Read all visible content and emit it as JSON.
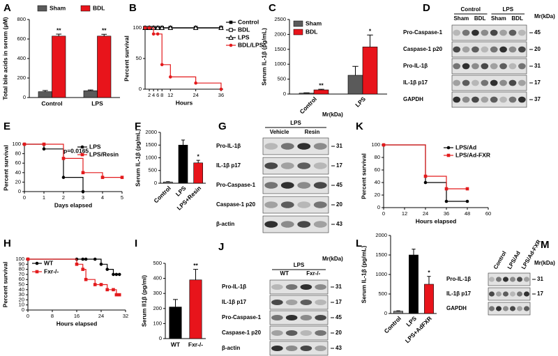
{
  "chart_data": [
    {
      "type": "bar",
      "panel": "A",
      "ylabel": "Total bile acids in serum (μM)",
      "categories": [
        "Control",
        "LPS"
      ],
      "series": [
        {
          "name": "Sham",
          "color": "#5a5a5a",
          "values": [
            60,
            70
          ],
          "errors": [
            12,
            8
          ],
          "significance": [
            null,
            null
          ]
        },
        {
          "name": "BDL",
          "color": "#e8141b",
          "values": [
            630,
            630
          ],
          "errors": [
            20,
            18
          ],
          "significance": [
            "**",
            "**"
          ]
        }
      ],
      "ylim": [
        0,
        800
      ],
      "yticks": [
        0,
        200,
        400,
        600,
        800
      ],
      "legend": "top"
    },
    {
      "type": "survival",
      "panel": "B",
      "ylabel": "Percent survival",
      "xlabel": "Hours",
      "x": [
        0,
        2,
        4,
        6,
        8,
        12,
        24,
        36
      ],
      "series": [
        {
          "name": "Control",
          "color": "#000000",
          "marker": "square",
          "values": [
            100,
            100,
            100,
            100,
            100,
            100,
            100,
            100
          ]
        },
        {
          "name": "BDL",
          "color": "#000000",
          "marker": "open-square",
          "values": [
            100,
            100,
            100,
            100,
            100,
            100,
            100,
            100
          ]
        },
        {
          "name": "LPS",
          "color": "#000000",
          "marker": "open-triangle",
          "values": [
            100,
            100,
            100,
            100,
            100,
            100,
            100,
            100
          ]
        },
        {
          "name": "BDL/LPS",
          "color": "#e31a1c",
          "marker": "circle",
          "values": [
            100,
            100,
            90,
            90,
            40,
            20,
            10,
            0
          ]
        }
      ],
      "xlim": [
        0,
        37
      ],
      "xticks": [
        2,
        4,
        6,
        8,
        12,
        24,
        36
      ],
      "ylim": [
        0,
        100
      ],
      "yticks": [
        0,
        50,
        100
      ],
      "legend": "right"
    },
    {
      "type": "bar",
      "panel": "C",
      "ylabel": "Serum IL-1β (pg/mL)",
      "categories": [
        "Control",
        "LPS"
      ],
      "series": [
        {
          "name": "Sham",
          "color": "#5a5a5a",
          "values": [
            30,
            630
          ],
          "errors": [
            10,
            300
          ],
          "significance": [
            null,
            null
          ]
        },
        {
          "name": "BDL",
          "color": "#e8141b",
          "values": [
            140,
            1580
          ],
          "errors": [
            20,
            400
          ],
          "significance": [
            "**",
            "*"
          ]
        }
      ],
      "ylim": [
        0,
        2500
      ],
      "yticks": [
        0,
        500,
        1000,
        1500,
        2000,
        2500
      ],
      "legend": "upper left"
    },
    {
      "type": "survival",
      "panel": "E",
      "ylabel": "Percent survival",
      "xlabel": "Days elapsed",
      "annotation": "p=0.0165",
      "x": [
        0,
        1,
        2,
        3,
        4,
        5
      ],
      "series": [
        {
          "name": "LPS",
          "color": "#000000",
          "marker": "circle",
          "values": [
            100,
            90,
            30,
            0,
            null,
            null
          ]
        },
        {
          "name": "LPS/Resin",
          "color": "#e31a1c",
          "marker": "square",
          "values": [
            100,
            100,
            70,
            40,
            30,
            30
          ]
        }
      ],
      "xlim": [
        0,
        5
      ],
      "xticks": [
        0,
        1,
        2,
        3,
        4,
        5
      ],
      "ylim": [
        0,
        100
      ],
      "yticks": [
        0,
        20,
        40,
        60,
        80,
        100
      ],
      "legend": "upper right"
    },
    {
      "type": "bar",
      "panel": "F",
      "ylabel": "Serum IL-1β (pg/mL)",
      "categories": [
        "Control",
        "LPS",
        "LPS+Resin"
      ],
      "values": [
        50,
        1500,
        800
      ],
      "errors": [
        10,
        200,
        100
      ],
      "colors": [
        "#808080",
        "#000000",
        "#e8141b"
      ],
      "significance": [
        null,
        null,
        "*"
      ],
      "ylim": [
        0,
        2000
      ],
      "yticks": [
        0,
        500,
        1000,
        1500,
        2000
      ]
    },
    {
      "type": "survival",
      "panel": "K",
      "ylabel": "Percent survival",
      "xlabel": "Hours elapsed",
      "x": [
        0,
        24,
        36,
        48
      ],
      "series": [
        {
          "name": "LPS/Ad",
          "color": "#000000",
          "marker": "circle",
          "values": [
            100,
            40,
            10,
            10
          ]
        },
        {
          "name": "LPS/Ad-FXR",
          "color": "#e31a1c",
          "marker": "square",
          "values": [
            100,
            50,
            30,
            30
          ]
        }
      ],
      "xlim": [
        0,
        60
      ],
      "xticks": [
        0,
        12,
        24,
        36,
        48,
        60
      ],
      "ylim": [
        0,
        100
      ],
      "yticks": [
        0,
        20,
        40,
        60,
        80,
        100
      ],
      "legend": "upper right"
    },
    {
      "type": "survival",
      "panel": "H",
      "ylabel": "Percent survival",
      "xlabel": "Hours elapsed",
      "x": [
        0,
        16,
        18,
        19,
        22,
        24,
        26,
        28,
        29,
        30
      ],
      "series": [
        {
          "name": "WT",
          "color": "#000000",
          "marker": "circle",
          "values": [
            100,
            100,
            100,
            100,
            100,
            90,
            80,
            70,
            70,
            70
          ]
        },
        {
          "name": "Fxr-/-",
          "color": "#e31a1c",
          "marker": "square",
          "values": [
            100,
            90,
            80,
            60,
            50,
            50,
            40,
            40,
            30,
            30
          ]
        }
      ],
      "xlim": [
        0,
        32
      ],
      "xticks": [
        0,
        8,
        16,
        24,
        32
      ],
      "ylim": [
        0,
        100
      ],
      "yticks": [
        0,
        10,
        20,
        30,
        40,
        50,
        60,
        70,
        80,
        90,
        100
      ],
      "legend": "upper left"
    },
    {
      "type": "bar",
      "panel": "I",
      "ylabel": "Serum Il1β (pg/ml)",
      "categories": [
        "WT",
        "Fxr-/-"
      ],
      "values": [
        210,
        390
      ],
      "errors": [
        50,
        70
      ],
      "colors": [
        "#000000",
        "#e8141b"
      ],
      "significance": [
        null,
        "**"
      ],
      "ylim": [
        0,
        500
      ],
      "yticks": [
        0,
        100,
        200,
        300,
        400,
        500
      ]
    },
    {
      "type": "bar",
      "panel": "L",
      "ylabel": "Serum IL-1β (pg/mL)",
      "categories": [
        "Control",
        "LPS",
        "LPS+AdFXR"
      ],
      "values": [
        60,
        1500,
        750
      ],
      "errors": [
        10,
        150,
        200
      ],
      "colors": [
        "#808080",
        "#000000",
        "#e8141b"
      ],
      "significance": [
        null,
        null,
        "*"
      ],
      "ylim": [
        0,
        2000
      ],
      "yticks": [
        0,
        500,
        1000,
        1500,
        2000
      ]
    }
  ],
  "blots": [
    {
      "panel": "D",
      "mw_header": "Mr(kDa)",
      "groups": [
        {
          "label": "Control",
          "lanes": [
            "Sham",
            "BDL"
          ]
        },
        {
          "label": "LPS",
          "lanes": [
            "Sham",
            "BDL"
          ]
        }
      ],
      "rows": [
        {
          "label": "Pro-Caspase-1",
          "mw": 45
        },
        {
          "label": "Caspase-1 p20",
          "mw": 20
        },
        {
          "label": "Pro-IL-1β",
          "mw": 31
        },
        {
          "label": "IL-1β p17",
          "mw": 17
        },
        {
          "label": "GAPDH",
          "mw": 37
        }
      ]
    },
    {
      "panel": "G",
      "mw_header": "Mr(kDa)",
      "groups": [
        {
          "label": "LPS",
          "lanes": [
            "Vehicle",
            "Resin"
          ]
        }
      ],
      "rows": [
        {
          "label": "Pro-IL-1β",
          "mw": 31
        },
        {
          "label": "IL-1β p17",
          "mw": 17
        },
        {
          "label": "Pro-Caspase-1",
          "mw": 45
        },
        {
          "label": "Caspase-1 p20",
          "mw": 20
        },
        {
          "label": "β-actin",
          "mw": 43
        }
      ]
    },
    {
      "panel": "J",
      "mw_header": "Mr(kDa)",
      "groups": [
        {
          "label": "LPS",
          "lanes": [
            "WT",
            "Fxr-/-"
          ]
        }
      ],
      "rows": [
        {
          "label": "Pro-IL-1β",
          "mw": 31
        },
        {
          "label": "IL-1β p17",
          "mw": 17
        },
        {
          "label": "Pro-Caspase-1",
          "mw": 45
        },
        {
          "label": "Caspase-1 p20",
          "mw": 20
        },
        {
          "label": "β-actin",
          "mw": 43
        }
      ]
    },
    {
      "panel": "M",
      "mw_header": "Mr(kDa)",
      "groups": [
        {
          "lanes": [
            "Control",
            "LPS/Ad",
            "LPS/Ad-FXR"
          ]
        }
      ],
      "rows": [
        {
          "label": "Pro-IL-1β",
          "mw": 31
        },
        {
          "label": "IL-1β  p17",
          "mw": 17
        },
        {
          "label": "GAPDH"
        }
      ]
    }
  ]
}
